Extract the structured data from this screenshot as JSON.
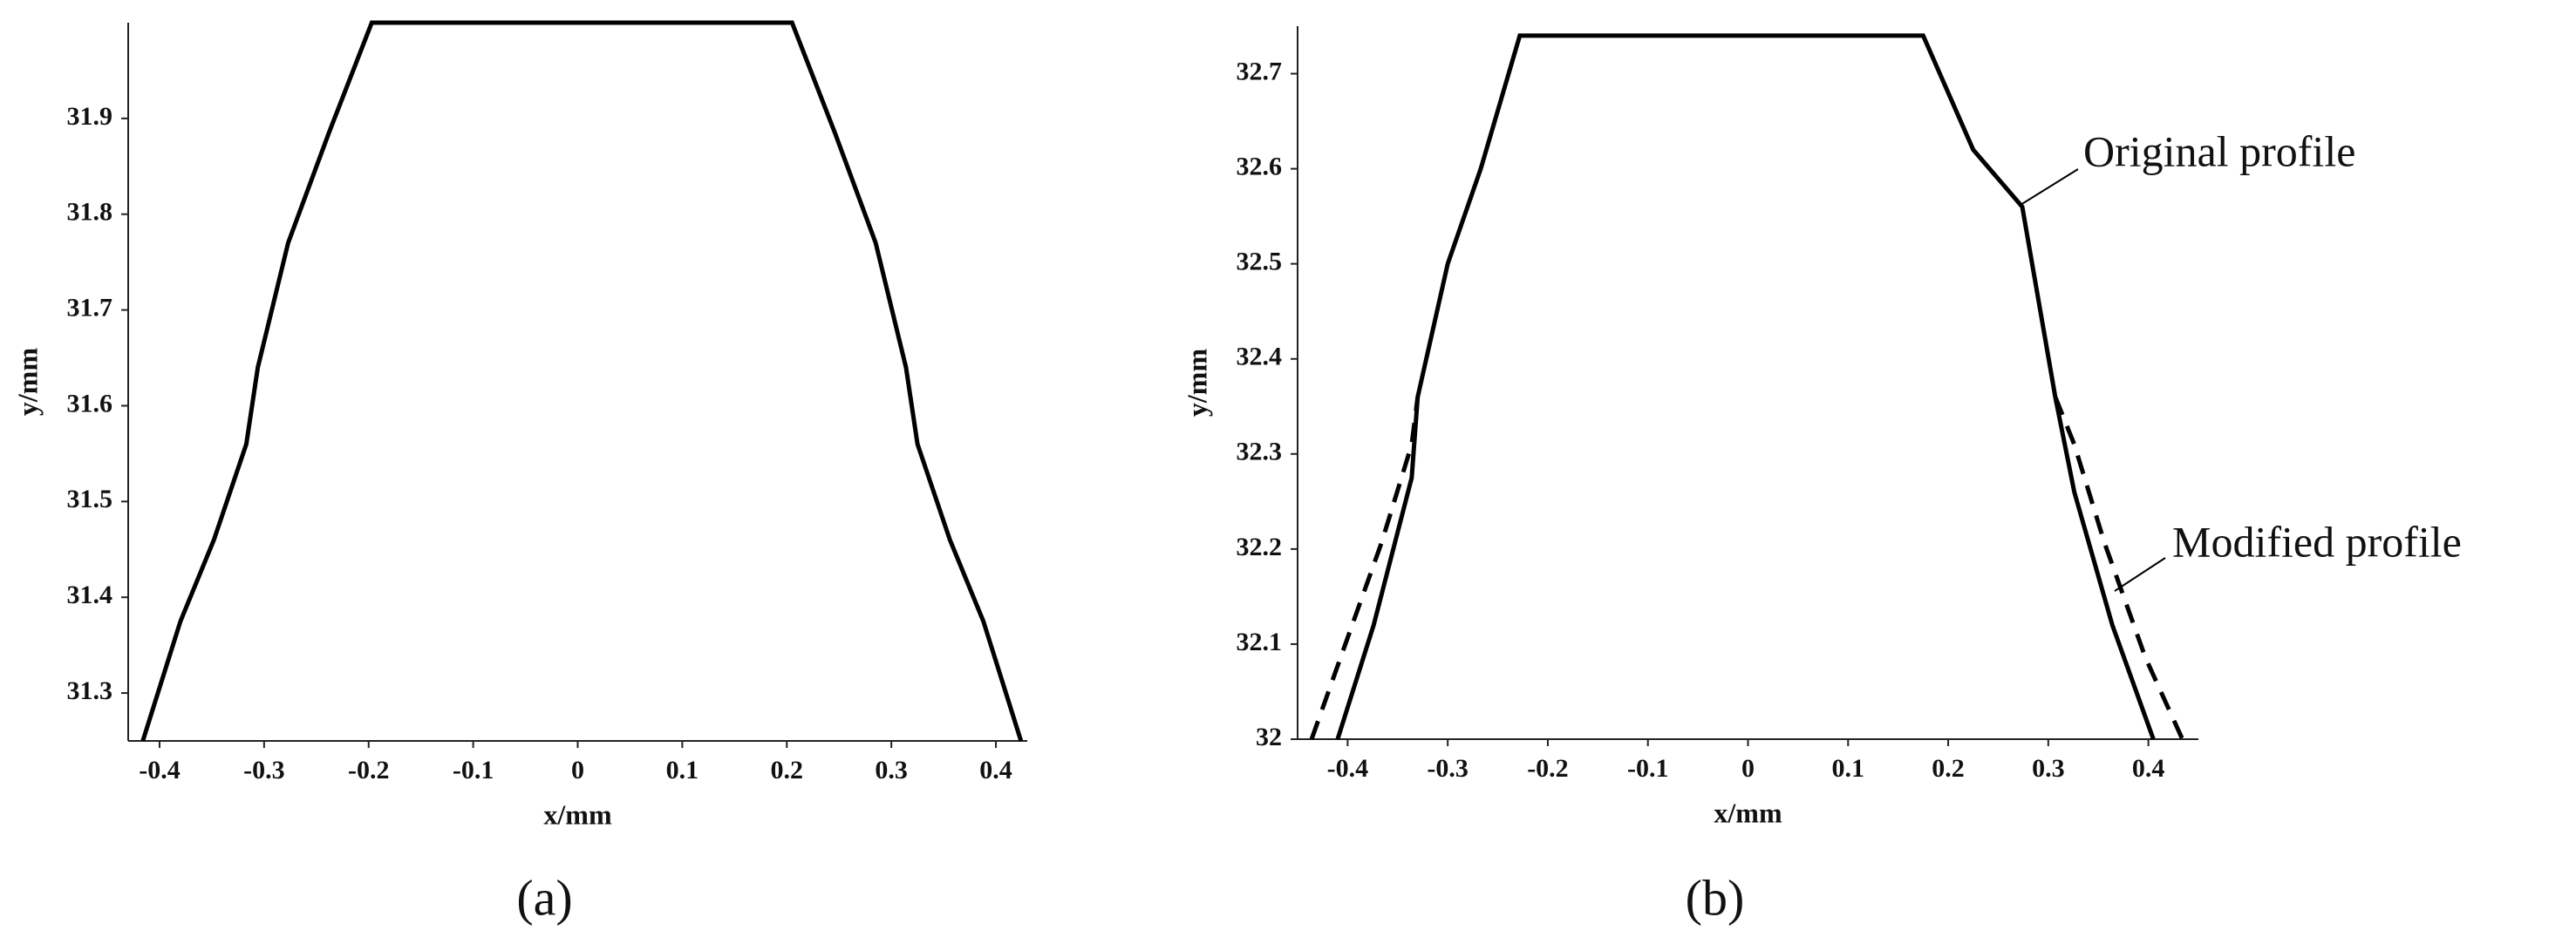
{
  "chart_data": [
    {
      "type": "line",
      "panel_label": "(a)",
      "xlabel": "x/mm",
      "ylabel": "y/mm",
      "xlim": [
        -0.43,
        0.43
      ],
      "ylim": [
        31.25,
        32.0
      ],
      "xticks": [
        -0.4,
        -0.3,
        -0.2,
        -0.1,
        0,
        0.1,
        0.2,
        0.3,
        0.4
      ],
      "yticks": [
        31.3,
        31.4,
        31.5,
        31.6,
        31.7,
        31.8,
        31.9
      ],
      "series": [
        {
          "color": "#000000",
          "dashed": false,
          "x": [
            -0.416,
            -0.38,
            -0.348,
            -0.317,
            -0.306,
            -0.277,
            -0.238,
            -0.197,
            0.205,
            0.246,
            0.285,
            0.314,
            0.325,
            0.356,
            0.388,
            0.424
          ],
          "values": [
            31.25,
            31.375,
            31.46,
            31.56,
            31.64,
            31.77,
            31.885,
            32.0,
            32.0,
            31.885,
            31.77,
            31.64,
            31.56,
            31.46,
            31.375,
            31.25
          ]
        }
      ]
    },
    {
      "type": "line",
      "panel_label": "(b)",
      "xlabel": "x/mm",
      "ylabel": "y/mm",
      "xlim": [
        -0.45,
        0.45
      ],
      "ylim": [
        32.0,
        32.75
      ],
      "xticks": [
        -0.4,
        -0.3,
        -0.2,
        -0.1,
        0,
        0.1,
        0.2,
        0.3,
        0.4
      ],
      "yticks": [
        32,
        32.1,
        32.2,
        32.3,
        32.4,
        32.5,
        32.6,
        32.7
      ],
      "annotations": [
        "Original profile",
        "Modified profile"
      ],
      "series": [
        {
          "name": "Original profile",
          "color": "#000000",
          "dashed": false,
          "x": [
            -0.41,
            -0.374,
            -0.336,
            -0.33,
            -0.3,
            -0.267,
            -0.228,
            0.175,
            0.225,
            0.274,
            0.307,
            0.326,
            0.364,
            0.405
          ],
          "values": [
            32.0,
            32.12,
            32.275,
            32.36,
            32.5,
            32.6,
            32.74,
            32.74,
            32.62,
            32.56,
            32.36,
            32.26,
            32.12,
            32.0
          ]
        },
        {
          "name": "Modified profile",
          "color": "#000000",
          "dashed": true,
          "x": [
            -0.436,
            -0.407,
            -0.366,
            -0.336,
            -0.33,
            null,
            0.307,
            0.326,
            0.356,
            0.397,
            0.434
          ],
          "values": [
            32.0,
            32.086,
            32.207,
            32.31,
            32.36,
            null,
            32.36,
            32.31,
            32.207,
            32.086,
            32.0
          ]
        }
      ]
    }
  ]
}
